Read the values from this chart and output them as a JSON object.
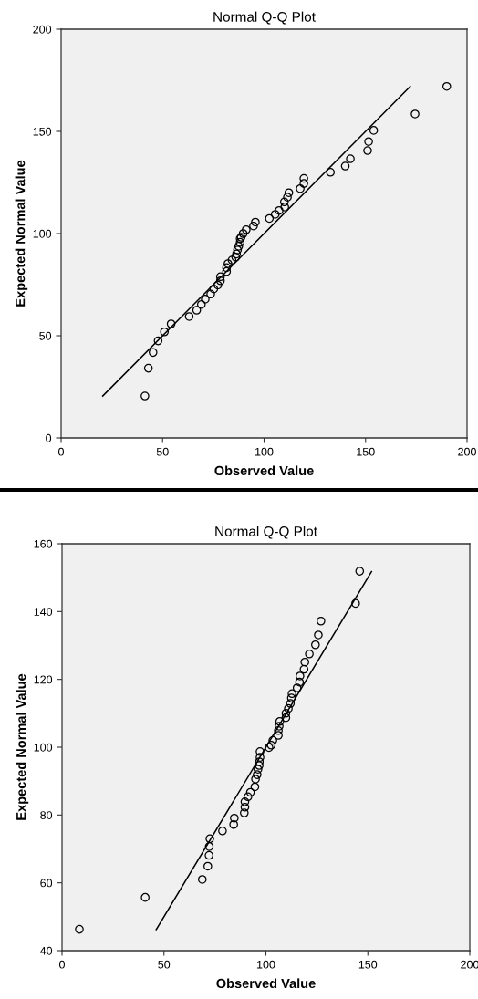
{
  "chart_data": [
    {
      "type": "scatter",
      "title": "Normal Q-Q Plot",
      "xlabel": "Observed Value",
      "ylabel": "Expected Normal Value",
      "xlim": [
        0,
        200
      ],
      "ylim": [
        0,
        200
      ],
      "xticks": [
        0,
        50,
        100,
        150,
        200
      ],
      "yticks": [
        0,
        50,
        100,
        150,
        200
      ],
      "grid": false,
      "legend": false,
      "series": [
        {
          "type": "scatter",
          "marker": "circle",
          "color": "#000000",
          "x": [
            190,
            174.4,
            154,
            151.5,
            151,
            142.5,
            140,
            132.7,
            119.6,
            119.6,
            117.8,
            112.2,
            111.5,
            110,
            110.2,
            107.4,
            105.5,
            102.6,
            95.7,
            94.8,
            91.2,
            89.7,
            88.7,
            88.2,
            88.2,
            87.5,
            86.9,
            86.4,
            86,
            84.2,
            82.2,
            81.5,
            81.5,
            78.5,
            78.5,
            77.2,
            75.2,
            73.7,
            71,
            69.1,
            66.8,
            63.1,
            54.2,
            50.9,
            47.8,
            45.3,
            43,
            41.3
          ],
          "values": [
            172,
            158.5,
            150.5,
            145,
            140.6,
            136.6,
            133,
            130,
            127,
            124.5,
            122,
            120,
            117.8,
            115.5,
            113,
            111.3,
            109.4,
            107.4,
            105.6,
            103.7,
            101.9,
            100,
            98.2,
            97.5,
            95.7,
            93.8,
            92,
            90,
            88.5,
            87,
            85.3,
            83.3,
            81.4,
            78.9,
            76.9,
            74.8,
            72.9,
            70.4,
            67.9,
            65.3,
            62.5,
            59.4,
            55.8,
            51.9,
            47.5,
            41.8,
            34.1,
            20.5
          ]
        },
        {
          "type": "line",
          "marker": "none",
          "line_style": "solid",
          "color": "#000000",
          "x": [
            20.5,
            172
          ],
          "values": [
            20.5,
            172
          ]
        }
      ]
    },
    {
      "type": "scatter",
      "title": "Normal Q-Q Plot",
      "xlabel": "Observed Value",
      "ylabel": "Expected Normal Value",
      "xlim": [
        0,
        200
      ],
      "ylim": [
        40,
        160
      ],
      "xticks": [
        0,
        50,
        100,
        150,
        200
      ],
      "yticks": [
        40,
        60,
        80,
        100,
        120,
        140,
        160
      ],
      "grid": false,
      "legend": false,
      "series": [
        {
          "type": "scatter",
          "marker": "circle",
          "color": "#000000",
          "x": [
            146,
            144,
            127,
            125.7,
            124.3,
            121.3,
            119.1,
            118.7,
            116.7,
            116.5,
            115.3,
            112.8,
            112.5,
            112,
            111,
            109.8,
            109.8,
            106.8,
            106.5,
            106.1,
            106.1,
            103.4,
            102.6,
            101.5,
            97.1,
            97.1,
            96.8,
            96.7,
            96.1,
            95.7,
            94.9,
            94.6,
            92.4,
            91.2,
            89.7,
            89.7,
            89.4,
            84.5,
            84.2,
            78.7,
            72.5,
            72.2,
            72.1,
            71.5,
            68.8,
            40.8,
            8.5
          ],
          "values": [
            151.9,
            142.4,
            137.2,
            133.1,
            130.2,
            127.5,
            125.1,
            123,
            121,
            119.2,
            117.5,
            115.8,
            114.5,
            112.9,
            111.4,
            110,
            108.7,
            107.6,
            106.2,
            104.9,
            103.5,
            102,
            100.6,
            99.9,
            98.7,
            97,
            95.7,
            94.6,
            93.5,
            91.9,
            90.6,
            88.3,
            86.7,
            85.4,
            83.9,
            82.3,
            80.6,
            79.1,
            77.2,
            75.3,
            73,
            70.7,
            68.1,
            64.9,
            61,
            55.7,
            46.3
          ]
        },
        {
          "type": "line",
          "marker": "none",
          "line_style": "solid",
          "color": "#000000",
          "x": [
            46.2,
            151.8
          ],
          "values": [
            46.2,
            151.8
          ]
        }
      ]
    }
  ]
}
